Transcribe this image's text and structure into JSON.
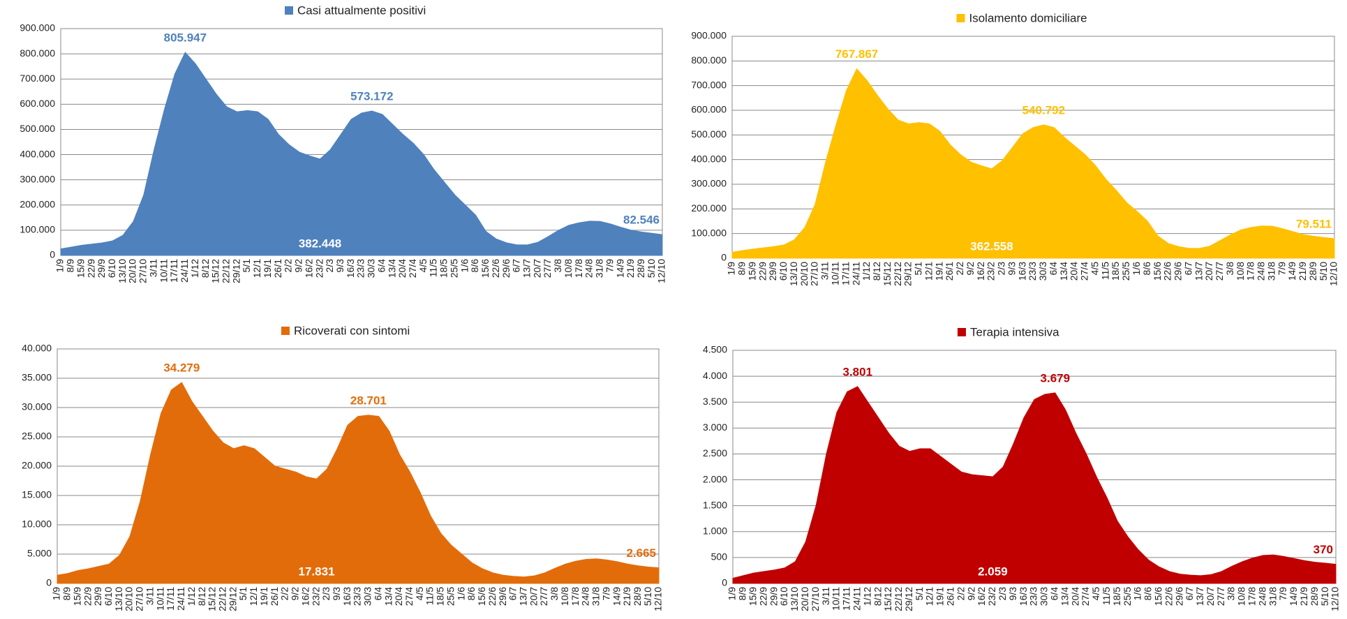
{
  "chart_data": [
    {
      "type": "area",
      "legend": "top",
      "categories": [
        "1/9",
        "8/9",
        "15/9",
        "22/9",
        "29/9",
        "6/10",
        "13/10",
        "20/10",
        "27/10",
        "3/11",
        "10/11",
        "17/11",
        "24/11",
        "1/12",
        "8/12",
        "15/12",
        "22/12",
        "29/12",
        "5/1",
        "12/1",
        "19/1",
        "26/1",
        "2/2",
        "9/2",
        "16/2",
        "23/2",
        "2/3",
        "9/3",
        "16/3",
        "23/3",
        "30/3",
        "6/4",
        "13/4",
        "20/4",
        "27/4",
        "4/5",
        "11/5",
        "18/5",
        "25/5",
        "1/6",
        "8/6",
        "15/6",
        "22/6",
        "29/6",
        "6/7",
        "13/7",
        "20/7",
        "27/7",
        "3/8",
        "10/8",
        "17/8",
        "24/8",
        "31/8",
        "7/9",
        "14/9",
        "21/9",
        "28/9",
        "5/10",
        "12/10"
      ],
      "series": [
        {
          "name": "Casi attualmente positivi",
          "color": "#4f81bd",
          "values": [
            26000,
            33000,
            40000,
            45000,
            50000,
            58000,
            80000,
            135000,
            240000,
            420000,
            580000,
            720000,
            805947,
            760000,
            700000,
            640000,
            590000,
            570000,
            575000,
            570000,
            540000,
            480000,
            440000,
            410000,
            395000,
            382448,
            420000,
            480000,
            540000,
            565000,
            573172,
            560000,
            520000,
            480000,
            445000,
            400000,
            340000,
            290000,
            240000,
            200000,
            160000,
            95000,
            65000,
            50000,
            42000,
            42000,
            52000,
            75000,
            100000,
            120000,
            130000,
            136000,
            135000,
            125000,
            112000,
            100000,
            93000,
            88000,
            82546
          ],
          "value_labels": [
            null,
            null,
            null,
            null,
            null,
            null,
            null,
            null,
            null,
            null,
            null,
            null,
            "805.947",
            null,
            null,
            null,
            null,
            null,
            null,
            null,
            null,
            null,
            null,
            null,
            null,
            "382.448",
            null,
            null,
            null,
            null,
            "573.172",
            null,
            null,
            null,
            null,
            null,
            null,
            null,
            null,
            null,
            null,
            null,
            null,
            null,
            null,
            null,
            null,
            null,
            null,
            null,
            null,
            null,
            null,
            null,
            null,
            null,
            null,
            null,
            "82.546"
          ]
        }
      ],
      "ylim": [
        0,
        900000
      ],
      "yticks": [
        0,
        {
          "value": 100000,
          "label": "100.000"
        },
        {
          "value": 200000,
          "label": "200.000"
        },
        {
          "value": 300000,
          "label": "300.000"
        },
        {
          "value": 400000,
          "label": "400.000"
        },
        {
          "value": 500000,
          "label": "500.000"
        },
        {
          "value": 600000,
          "label": "600.000"
        },
        {
          "value": 700000,
          "label": "700.000"
        },
        {
          "value": 800000,
          "label": "800.000"
        },
        {
          "value": 900000,
          "label": "900.000"
        }
      ],
      "grid": true
    },
    {
      "type": "area",
      "legend": "top",
      "categories": [
        "1/9",
        "8/9",
        "15/9",
        "22/9",
        "29/9",
        "6/10",
        "13/10",
        "20/10",
        "27/10",
        "3/11",
        "10/11",
        "17/11",
        "24/11",
        "1/12",
        "8/12",
        "15/12",
        "22/12",
        "29/12",
        "5/1",
        "12/1",
        "19/1",
        "26/1",
        "2/2",
        "9/2",
        "16/2",
        "23/2",
        "2/3",
        "9/3",
        "16/3",
        "23/3",
        "30/3",
        "6/4",
        "13/4",
        "20/4",
        "27/4",
        "4/5",
        "11/5",
        "18/5",
        "25/5",
        "1/6",
        "8/6",
        "15/6",
        "22/6",
        "29/6",
        "6/7",
        "13/7",
        "20/7",
        "27/7",
        "3/8",
        "10/8",
        "17/8",
        "24/8",
        "31/8",
        "7/9",
        "14/9",
        "21/9",
        "28/9",
        "5/10",
        "12/10"
      ],
      "series": [
        {
          "name": "Isolamento domiciliare",
          "color": "#ffc000",
          "values": [
            24000,
            31000,
            37000,
            42000,
            47000,
            54000,
            75000,
            125000,
            220000,
            390000,
            540000,
            680000,
            767867,
            720000,
            660000,
            605000,
            560000,
            545000,
            550000,
            545000,
            515000,
            460000,
            420000,
            390000,
            375000,
            362558,
            395000,
            450000,
            505000,
            530000,
            540792,
            530000,
            490000,
            455000,
            420000,
            375000,
            320000,
            275000,
            225000,
            190000,
            150000,
            90000,
            60000,
            47000,
            40000,
            40000,
            49000,
            72000,
            95000,
            115000,
            125000,
            131000,
            130000,
            120000,
            108000,
            96000,
            89000,
            84000,
            79511
          ],
          "value_labels": [
            null,
            null,
            null,
            null,
            null,
            null,
            null,
            null,
            null,
            null,
            null,
            null,
            "767.867",
            null,
            null,
            null,
            null,
            null,
            null,
            null,
            null,
            null,
            null,
            null,
            null,
            "362.558",
            null,
            null,
            null,
            null,
            "540.792",
            null,
            null,
            null,
            null,
            null,
            null,
            null,
            null,
            null,
            null,
            null,
            null,
            null,
            null,
            null,
            null,
            null,
            null,
            null,
            null,
            null,
            null,
            null,
            null,
            null,
            null,
            null,
            "79.511"
          ]
        }
      ],
      "ylim": [
        0,
        900000
      ],
      "yticks": [
        0,
        {
          "value": 100000,
          "label": "100.000"
        },
        {
          "value": 200000,
          "label": "200.000"
        },
        {
          "value": 300000,
          "label": "300.000"
        },
        {
          "value": 400000,
          "label": "400.000"
        },
        {
          "value": 500000,
          "label": "500.000"
        },
        {
          "value": 600000,
          "label": "600.000"
        },
        {
          "value": 700000,
          "label": "700.000"
        },
        {
          "value": 800000,
          "label": "800.000"
        },
        {
          "value": 900000,
          "label": "900.000"
        }
      ],
      "grid": true
    },
    {
      "type": "area",
      "legend": "top",
      "categories": [
        "1/9",
        "8/9",
        "15/9",
        "22/9",
        "29/9",
        "6/10",
        "13/10",
        "20/10",
        "27/10",
        "3/11",
        "10/11",
        "17/11",
        "24/11",
        "1/12",
        "8/12",
        "15/12",
        "22/12",
        "29/12",
        "5/1",
        "12/1",
        "19/1",
        "26/1",
        "2/2",
        "9/2",
        "16/2",
        "23/2",
        "2/3",
        "9/3",
        "16/3",
        "23/3",
        "30/3",
        "6/4",
        "13/4",
        "20/4",
        "27/4",
        "4/5",
        "11/5",
        "18/5",
        "25/5",
        "1/6",
        "8/6",
        "15/6",
        "22/6",
        "29/6",
        "6/7",
        "13/7",
        "20/7",
        "27/7",
        "3/8",
        "10/8",
        "17/8",
        "24/8",
        "31/8",
        "7/9",
        "14/9",
        "21/9",
        "28/9",
        "5/10",
        "12/10"
      ],
      "series": [
        {
          "name": "Ricoverati con sintomi",
          "color": "#e36c0a",
          "values": [
            1400,
            1700,
            2200,
            2500,
            2900,
            3300,
            4800,
            8000,
            14000,
            22000,
            29000,
            33000,
            34279,
            31000,
            28500,
            26000,
            24000,
            23000,
            23500,
            23000,
            21500,
            20000,
            19500,
            19000,
            18200,
            17831,
            19500,
            23000,
            27000,
            28500,
            28701,
            28500,
            26000,
            22000,
            19000,
            15500,
            11500,
            8500,
            6500,
            5000,
            3500,
            2500,
            1800,
            1400,
            1200,
            1100,
            1300,
            1800,
            2600,
            3300,
            3800,
            4100,
            4200,
            4000,
            3700,
            3300,
            3000,
            2800,
            2665
          ],
          "value_labels": [
            null,
            null,
            null,
            null,
            null,
            null,
            null,
            null,
            null,
            null,
            null,
            null,
            "34.279",
            null,
            null,
            null,
            null,
            null,
            null,
            null,
            null,
            null,
            null,
            null,
            null,
            "17.831",
            null,
            null,
            null,
            null,
            "28.701",
            null,
            null,
            null,
            null,
            null,
            null,
            null,
            null,
            null,
            null,
            null,
            null,
            null,
            null,
            null,
            null,
            null,
            null,
            null,
            null,
            null,
            null,
            null,
            null,
            null,
            null,
            null,
            "2.665"
          ]
        }
      ],
      "ylim": [
        0,
        40000
      ],
      "yticks": [
        0,
        {
          "value": 5000,
          "label": "5.000"
        },
        {
          "value": 10000,
          "label": "10.000"
        },
        {
          "value": 15000,
          "label": "15.000"
        },
        {
          "value": 20000,
          "label": "20.000"
        },
        {
          "value": 25000,
          "label": "25.000"
        },
        {
          "value": 30000,
          "label": "30.000"
        },
        {
          "value": 35000,
          "label": "35.000"
        },
        {
          "value": 40000,
          "label": "40.000"
        }
      ],
      "grid": true
    },
    {
      "type": "area",
      "legend": "top",
      "categories": [
        "1/9",
        "8/9",
        "15/9",
        "22/9",
        "29/9",
        "6/10",
        "13/10",
        "20/10",
        "27/10",
        "3/11",
        "10/11",
        "17/11",
        "24/11",
        "1/12",
        "8/12",
        "15/12",
        "22/12",
        "29/12",
        "5/1",
        "12/1",
        "19/1",
        "26/1",
        "2/2",
        "9/2",
        "16/2",
        "23/2",
        "2/3",
        "9/3",
        "16/3",
        "23/3",
        "30/3",
        "6/4",
        "13/4",
        "20/4",
        "27/4",
        "4/5",
        "11/5",
        "18/5",
        "25/5",
        "1/6",
        "8/6",
        "15/6",
        "22/6",
        "29/6",
        "6/7",
        "13/7",
        "20/7",
        "27/7",
        "3/8",
        "10/8",
        "17/8",
        "24/8",
        "31/8",
        "7/9",
        "14/9",
        "21/9",
        "28/9",
        "5/10",
        "12/10"
      ],
      "series": [
        {
          "name": "Terapia intensiva",
          "color": "#c00000",
          "values": [
            100,
            150,
            200,
            230,
            260,
            300,
            420,
            800,
            1500,
            2500,
            3300,
            3700,
            3801,
            3500,
            3200,
            2900,
            2650,
            2550,
            2600,
            2600,
            2450,
            2300,
            2150,
            2100,
            2080,
            2059,
            2250,
            2700,
            3200,
            3550,
            3650,
            3679,
            3350,
            2900,
            2500,
            2050,
            1650,
            1200,
            900,
            650,
            450,
            320,
            230,
            180,
            160,
            150,
            170,
            230,
            330,
            420,
            490,
            540,
            550,
            520,
            480,
            440,
            410,
            390,
            370
          ],
          "value_labels": [
            null,
            null,
            null,
            null,
            null,
            null,
            null,
            null,
            null,
            null,
            null,
            null,
            "3.801",
            null,
            null,
            null,
            null,
            null,
            null,
            null,
            null,
            null,
            null,
            null,
            null,
            "2.059",
            null,
            null,
            null,
            null,
            null,
            "3.679",
            null,
            null,
            null,
            null,
            null,
            null,
            null,
            null,
            null,
            null,
            null,
            null,
            null,
            null,
            null,
            null,
            null,
            null,
            null,
            null,
            null,
            null,
            null,
            null,
            null,
            null,
            "370"
          ]
        }
      ],
      "ylim": [
        0,
        4500
      ],
      "yticks": [
        0,
        {
          "value": 500,
          "label": "500"
        },
        {
          "value": 1000,
          "label": "1.000"
        },
        {
          "value": 1500,
          "label": "1.500"
        },
        {
          "value": 2000,
          "label": "2.000"
        },
        {
          "value": 2500,
          "label": "2.500"
        },
        {
          "value": 3000,
          "label": "3.000"
        },
        {
          "value": 3500,
          "label": "3.500"
        },
        {
          "value": 4000,
          "label": "4.000"
        },
        {
          "value": 4500,
          "label": "4.500"
        }
      ],
      "grid": true
    }
  ]
}
